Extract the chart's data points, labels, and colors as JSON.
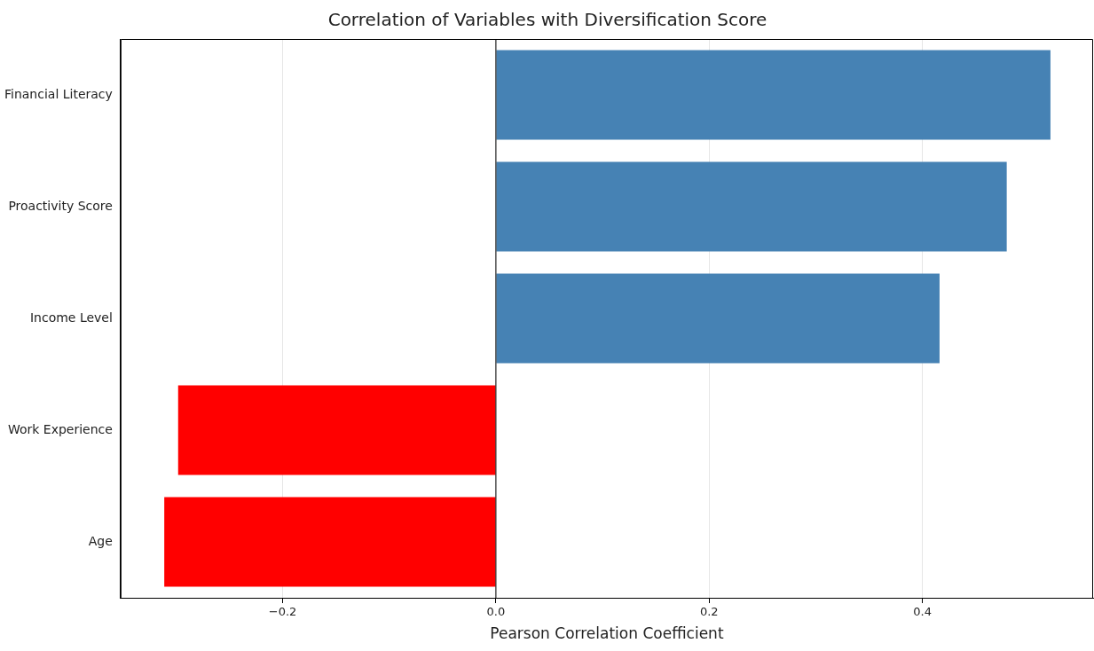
{
  "chart_data": {
    "type": "bar",
    "orientation": "horizontal",
    "title": "Correlation of Variables with Diversification Score",
    "xlabel": "Pearson Correlation Coefficient",
    "categories": [
      "Financial Literacy",
      "Proactivity Score",
      "Income Level",
      "Work Experience",
      "Age"
    ],
    "values": [
      0.52,
      0.479,
      0.416,
      -0.298,
      -0.311
    ],
    "colors": [
      "#4682b4",
      "#4682b4",
      "#4682b4",
      "#ff0000",
      "#ff0000"
    ],
    "xlim": [
      -0.352,
      0.56
    ],
    "xticks": [
      {
        "value": -0.2,
        "label": "−0.2"
      },
      {
        "value": 0,
        "label": "0.0"
      },
      {
        "value": 0.2,
        "label": "0.2"
      },
      {
        "value": 0.4,
        "label": "0.4"
      }
    ],
    "grid": "x",
    "legend": false,
    "ref_lines": [
      {
        "axis": "x",
        "value": 0,
        "color": "#000000"
      }
    ]
  }
}
